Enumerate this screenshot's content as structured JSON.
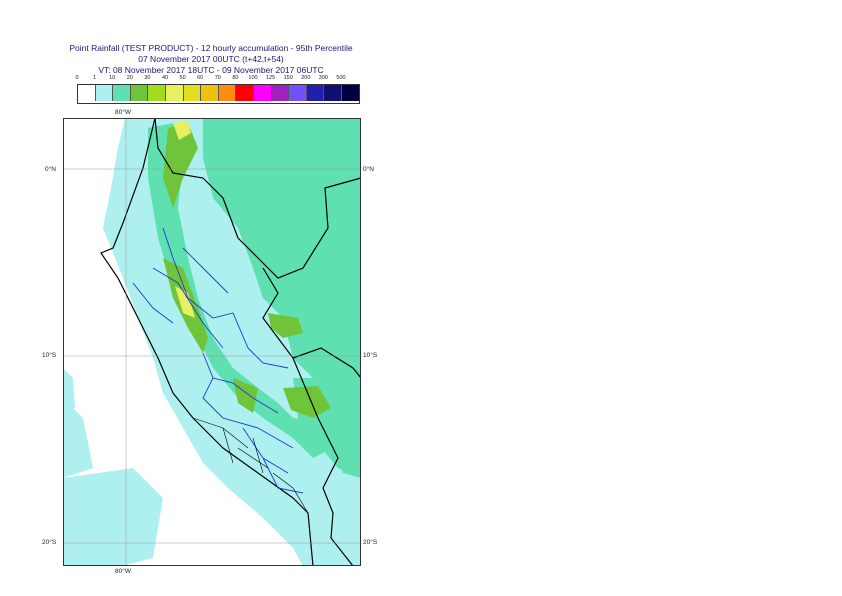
{
  "header": {
    "line1": "Point Rainfall (TEST PRODUCT) - 12 hourly accumulation - 95th Percentile",
    "line2": "07 November 2017 00UTC (t+42,t+54)",
    "line3": "VT: 08 November 2017 18UTC - 09 November 2017 06UTC"
  },
  "legend": {
    "labels": [
      "0",
      "1",
      "10",
      "20",
      "30",
      "40",
      "50",
      "60",
      "70",
      "80",
      "100",
      "125",
      "150",
      "200",
      "300",
      "500"
    ],
    "colors": [
      "#ffffff",
      "#aef0f0",
      "#5fe0b0",
      "#70c43a",
      "#a0dc20",
      "#e6f060",
      "#e0e020",
      "#f0c010",
      "#ff8c10",
      "#ff0000",
      "#ff00ff",
      "#a020c0",
      "#7050ff",
      "#2020b0",
      "#101070",
      "#000040"
    ]
  },
  "axes": {
    "top_lon": "80°W",
    "bottom_lon": "80°W",
    "lat_left": [
      "0°N",
      "10°S",
      "20°S"
    ],
    "lat_right": [
      "0°N",
      "10°S",
      "20°S"
    ]
  }
}
